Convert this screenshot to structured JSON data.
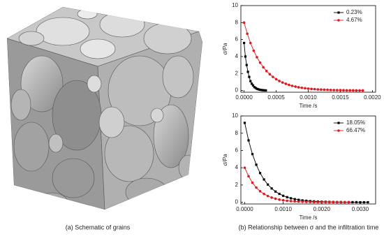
{
  "chart_data": [
    {
      "type": "line",
      "xlabel": "Time /s",
      "ylabel": "σ/Pa",
      "legend": "upper right",
      "xlim": [
        -5e-05,
        0.00205
      ],
      "ylim": [
        -0.2,
        10
      ],
      "xticks": [
        {
          "value": 0,
          "label": "0.0000"
        },
        0.0005,
        {
          "value": 0.001,
          "label": "0.0010"
        },
        0.0015,
        {
          "value": 0.002,
          "label": "0.0020"
        }
      ],
      "yticks": [
        0,
        2,
        4,
        6,
        8,
        10
      ],
      "series": [
        {
          "name": "0.23%",
          "color": "#000000",
          "marker": "square",
          "x": [
            0,
            2e-05,
            4e-05,
            6e-05,
            8e-05,
            0.0001,
            0.00012,
            0.00014,
            0.00016,
            0.00018,
            0.0002,
            0.00022,
            0.00024,
            0.00026,
            0.00028,
            0.0003,
            0.00032,
            0.00034
          ],
          "values": [
            5.6,
            4.0,
            3.0,
            2.2,
            1.6,
            1.1,
            0.8,
            0.6,
            0.4,
            0.3,
            0.2,
            0.15,
            0.1,
            0.07,
            0.05,
            0.03,
            0.02,
            0.01
          ]
        },
        {
          "name": "4.67%",
          "color": "#e0191f",
          "marker": "circle",
          "x": [
            0,
            5e-05,
            0.0001,
            0.00015,
            0.0002,
            0.00025,
            0.0003,
            0.00035,
            0.0004,
            0.00045,
            0.0005,
            0.00055,
            0.0006,
            0.00065,
            0.0007,
            0.00075,
            0.0008,
            0.00085,
            0.0009,
            0.00095,
            0.001,
            0.00105,
            0.0011,
            0.00115,
            0.0012,
            0.00125,
            0.0013,
            0.00135,
            0.0014,
            0.00145,
            0.0015,
            0.00155,
            0.0016,
            0.00165,
            0.0017,
            0.00175,
            0.0018,
            0.00185
          ],
          "values": [
            8,
            6.69,
            5.6,
            4.68,
            3.92,
            3.28,
            2.74,
            2.29,
            1.92,
            1.6,
            1.34,
            1.12,
            0.94,
            0.79,
            0.66,
            0.55,
            0.46,
            0.38,
            0.32,
            0.27,
            0.22,
            0.19,
            0.16,
            0.13,
            0.11,
            0.09,
            0.08,
            0.06,
            0.05,
            0.04,
            0.04,
            0.03,
            0.02,
            0.02,
            0.02,
            0.01,
            0.01,
            0.01
          ]
        }
      ]
    },
    {
      "type": "line",
      "xlabel": "Time /s",
      "ylabel": "σ/Pa",
      "legend": "upper right",
      "xlim": [
        -0.0001,
        0.0034
      ],
      "ylim": [
        -0.2,
        10
      ],
      "xticks": [
        {
          "value": 0,
          "label": "0.0000"
        },
        {
          "value": 0.001,
          "label": "0.0010"
        },
        {
          "value": 0.002,
          "label": "0.0020"
        },
        {
          "value": 0.003,
          "label": "0.0030"
        }
      ],
      "yticks": [
        0,
        2,
        4,
        6,
        8,
        10
      ],
      "series": [
        {
          "name": "18.05%",
          "color": "#000000",
          "marker": "square",
          "x": [
            0,
            0.0001,
            0.0002,
            0.0003,
            0.0004,
            0.0005,
            0.0006,
            0.0007,
            0.0008,
            0.0009,
            0.001,
            0.0011,
            0.0012,
            0.0013,
            0.0014,
            0.0015,
            0.0016,
            0.0017,
            0.0018,
            0.0019,
            0.002,
            0.0021,
            0.0022,
            0.0023,
            0.0024,
            0.0025,
            0.0026,
            0.0027,
            0.0028,
            0.0029,
            0.003,
            0.0031,
            0.0032
          ],
          "values": [
            9.2,
            7.17,
            5.58,
            4.35,
            3.38,
            2.64,
            2.05,
            1.6,
            1.24,
            0.97,
            0.75,
            0.59,
            0.46,
            0.36,
            0.28,
            0.21,
            0.17,
            0.13,
            0.1,
            0.08,
            0.06,
            0.05,
            0.04,
            0.03,
            0.02,
            0.02,
            0.01,
            0.01,
            0.01,
            0.01,
            0,
            0,
            0
          ]
        },
        {
          "name": "66.47%",
          "color": "#e0191f",
          "marker": "circle",
          "x": [
            0,
            0.0001,
            0.0002,
            0.0003,
            0.0004,
            0.0005,
            0.0006,
            0.0007,
            0.0008,
            0.0009,
            0.001,
            0.0011,
            0.0012,
            0.0013,
            0.0014,
            0.0015,
            0.0016,
            0.0017,
            0.0018,
            0.0019,
            0.002,
            0.0021,
            0.0022,
            0.0023,
            0.0024,
            0.0025,
            0.0026,
            0.0027
          ],
          "values": [
            4,
            3.01,
            2.26,
            1.7,
            1.28,
            0.96,
            0.72,
            0.54,
            0.41,
            0.31,
            0.23,
            0.17,
            0.13,
            0.1,
            0.07,
            0.06,
            0.04,
            0.03,
            0.02,
            0.02,
            0.01,
            0.01,
            0.01,
            0.01,
            0,
            0,
            0,
            0
          ]
        }
      ]
    }
  ],
  "captions": [
    "(a) Schematic of grains",
    "(b) Relationship between σ and  the infiltration time"
  ]
}
